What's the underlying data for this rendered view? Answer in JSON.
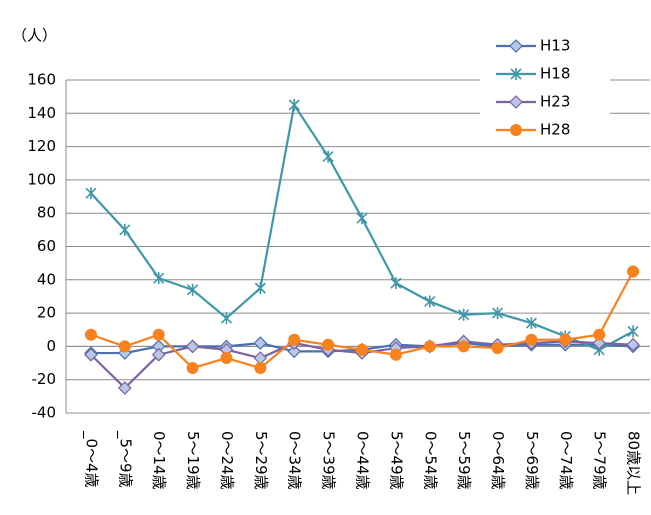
{
  "chart_data": {
    "type": "line",
    "y_label": "（人）",
    "categories": [
      "_0～4歳",
      "_5～9歳",
      "0～14歳",
      "5～19歳",
      "0～24歳",
      "5～29歳",
      "0～34歳",
      "5～39歳",
      "0～44歳",
      "5～49歳",
      "0～54歳",
      "5～59歳",
      "0～64歳",
      "5～69歳",
      "0～74歳",
      "5～79歳",
      "80歳以上"
    ],
    "series": [
      {
        "name": "H13",
        "color": "#4a71ad",
        "marker": "diamond",
        "values": [
          -4,
          -4,
          0,
          0,
          0,
          2,
          -3,
          -3,
          -2,
          1,
          0,
          2,
          0,
          1,
          1,
          1,
          0
        ]
      },
      {
        "name": "H18",
        "color": "#3f97a8",
        "marker": "star",
        "values": [
          92,
          70,
          41,
          34,
          17,
          35,
          145,
          114,
          77,
          38,
          27,
          19,
          20,
          14,
          6,
          -2,
          9
        ]
      },
      {
        "name": "H23",
        "color": "#7d62a0",
        "marker": "diamond",
        "values": [
          -5,
          -25,
          -5,
          0,
          -2,
          -7,
          2,
          -2,
          -4,
          -1,
          0,
          3,
          1,
          2,
          3,
          2,
          1
        ]
      },
      {
        "name": "H28",
        "color": "#f7821e",
        "marker": "circle",
        "values": [
          7,
          0,
          7,
          -13,
          -7,
          -13,
          4,
          1,
          -2,
          -5,
          0,
          0,
          -1,
          4,
          4,
          7,
          45
        ]
      }
    ],
    "ylim": [
      -40,
      160
    ],
    "yticks": [
      -40,
      -20,
      0,
      20,
      40,
      60,
      80,
      100,
      120,
      140,
      160
    ],
    "grid": true,
    "legend": "top-right"
  }
}
